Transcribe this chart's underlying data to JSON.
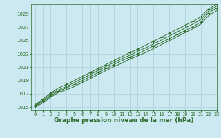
{
  "title": "Graphe pression niveau de la mer (hPa)",
  "background_color": "#cce8f0",
  "grid_color": "#b0d4dc",
  "line_color": "#2d6e2d",
  "xlim": [
    -0.5,
    23
  ],
  "ylim": [
    1014.5,
    1030.5
  ],
  "yticks": [
    1015,
    1017,
    1019,
    1021,
    1023,
    1025,
    1027,
    1029
  ],
  "xticks": [
    0,
    1,
    2,
    3,
    4,
    5,
    6,
    7,
    8,
    9,
    10,
    11,
    12,
    13,
    14,
    15,
    16,
    17,
    18,
    19,
    20,
    21,
    22,
    23
  ],
  "series": [
    [
      1015.0,
      1015.6,
      1016.5,
      1017.2,
      1017.6,
      1018.1,
      1018.7,
      1019.3,
      1019.9,
      1020.5,
      1021.1,
      1021.6,
      1022.2,
      1022.7,
      1023.2,
      1023.8,
      1024.4,
      1025.0,
      1025.6,
      1026.2,
      1026.8,
      1027.5,
      1028.8,
      1029.5
    ],
    [
      1015.1,
      1015.8,
      1016.7,
      1017.4,
      1017.9,
      1018.4,
      1019.0,
      1019.6,
      1020.2,
      1020.8,
      1021.4,
      1022.0,
      1022.5,
      1023.0,
      1023.6,
      1024.2,
      1024.7,
      1025.3,
      1025.9,
      1026.5,
      1027.1,
      1027.8,
      1029.2,
      1029.9
    ],
    [
      1015.2,
      1016.0,
      1016.9,
      1017.6,
      1018.1,
      1018.7,
      1019.3,
      1019.9,
      1020.5,
      1021.1,
      1021.7,
      1022.3,
      1022.8,
      1023.4,
      1023.9,
      1024.5,
      1025.1,
      1025.7,
      1026.3,
      1026.9,
      1027.5,
      1028.2,
      1029.5,
      1030.2
    ],
    [
      1015.3,
      1016.2,
      1017.1,
      1017.9,
      1018.4,
      1019.0,
      1019.6,
      1020.2,
      1020.8,
      1021.4,
      1022.0,
      1022.6,
      1023.2,
      1023.7,
      1024.3,
      1024.9,
      1025.5,
      1026.1,
      1026.7,
      1027.3,
      1027.9,
      1028.6,
      1029.8,
      1030.5
    ]
  ],
  "marker_series": [
    1,
    3
  ],
  "title_fontsize": 6.5,
  "tick_fontsize": 5.0
}
